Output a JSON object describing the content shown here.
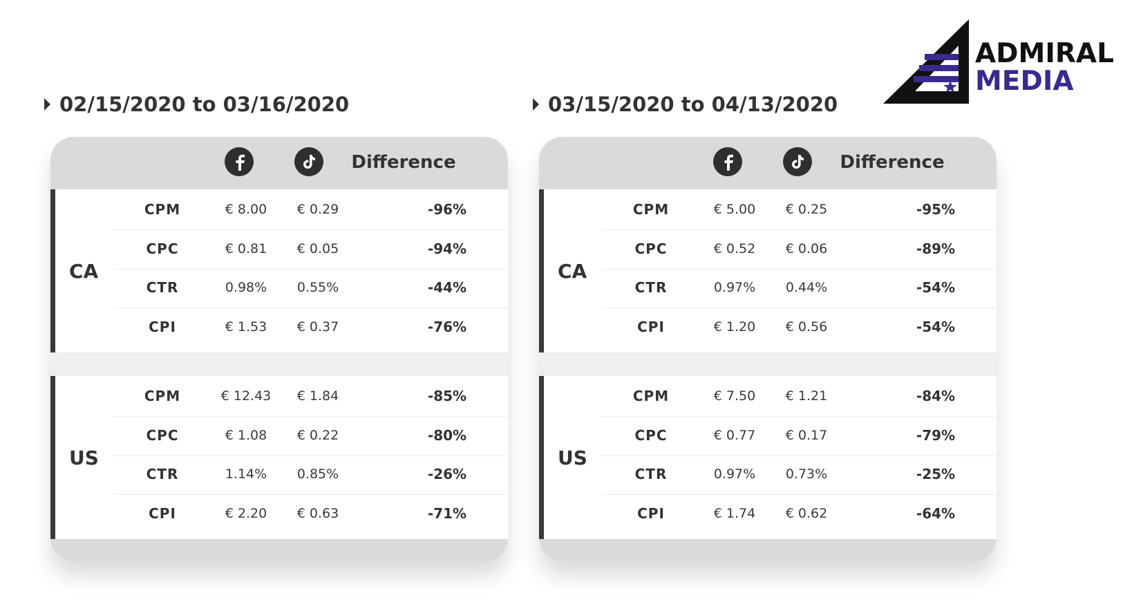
{
  "brand": {
    "line1": "ADMIRAL",
    "line2": "MEDIA",
    "colors": {
      "dark": "#111111",
      "purple": "#3b2a8c"
    }
  },
  "panels": [
    {
      "period": "02/15/2020 to 03/16/2020",
      "columns": {
        "facebook_icon": "facebook-icon",
        "tiktok_icon": "tiktok-icon",
        "difference": "Difference"
      },
      "groups": [
        {
          "region": "CA",
          "rows": [
            {
              "metric": "CPM",
              "fb": "€ 8.00",
              "tt": "€ 0.29",
              "diff": "-96%"
            },
            {
              "metric": "CPC",
              "fb": "€ 0.81",
              "tt": "€ 0.05",
              "diff": "-94%"
            },
            {
              "metric": "CTR",
              "fb": "0.98%",
              "tt": "0.55%",
              "diff": "-44%"
            },
            {
              "metric": "CPI",
              "fb": "€ 1.53",
              "tt": "€ 0.37",
              "diff": "-76%"
            }
          ]
        },
        {
          "region": "US",
          "rows": [
            {
              "metric": "CPM",
              "fb": "€ 12.43",
              "tt": "€ 1.84",
              "diff": "-85%"
            },
            {
              "metric": "CPC",
              "fb": "€ 1.08",
              "tt": "€ 0.22",
              "diff": "-80%"
            },
            {
              "metric": "CTR",
              "fb": "1.14%",
              "tt": "0.85%",
              "diff": "-26%"
            },
            {
              "metric": "CPI",
              "fb": "€ 2.20",
              "tt": "€ 0.63",
              "diff": "-71%"
            }
          ]
        }
      ]
    },
    {
      "period": "03/15/2020 to 04/13/2020",
      "columns": {
        "facebook_icon": "facebook-icon",
        "tiktok_icon": "tiktok-icon",
        "difference": "Difference"
      },
      "groups": [
        {
          "region": "CA",
          "rows": [
            {
              "metric": "CPM",
              "fb": "€ 5.00",
              "tt": "€ 0.25",
              "diff": "-95%"
            },
            {
              "metric": "CPC",
              "fb": "€ 0.52",
              "tt": "€ 0.06",
              "diff": "-89%"
            },
            {
              "metric": "CTR",
              "fb": "0.97%",
              "tt": "0.44%",
              "diff": "-54%"
            },
            {
              "metric": "CPI",
              "fb": "€ 1.20",
              "tt": "€ 0.56",
              "diff": "-54%"
            }
          ]
        },
        {
          "region": "US",
          "rows": [
            {
              "metric": "CPM",
              "fb": "€ 7.50",
              "tt": "€ 1.21",
              "diff": "-84%"
            },
            {
              "metric": "CPC",
              "fb": "€ 0.77",
              "tt": "€ 0.17",
              "diff": "-79%"
            },
            {
              "metric": "CTR",
              "fb": "0.97%",
              "tt": "0.73%",
              "diff": "-25%"
            },
            {
              "metric": "CPI",
              "fb": "€ 1.74",
              "tt": "€ 0.62",
              "diff": "-64%"
            }
          ]
        }
      ]
    }
  ]
}
